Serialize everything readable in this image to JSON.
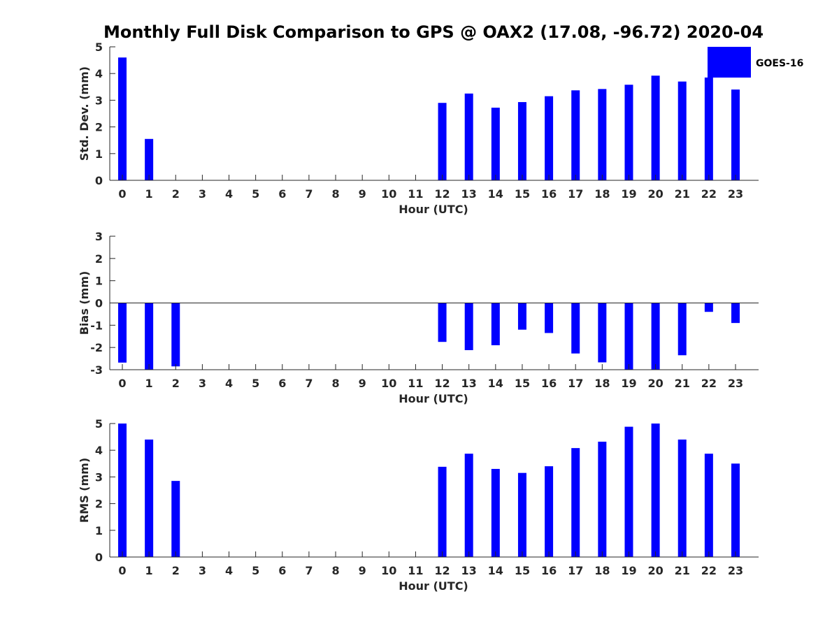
{
  "title": "Monthly Full Disk Comparison to GPS @ OAX2 (17.08, -96.72) 2020-04",
  "legend": {
    "label": "GOES-16",
    "color": "#0000ff",
    "placement": "top-right"
  },
  "chart_data": [
    {
      "type": "bar",
      "xlabel": "Hour (UTC)",
      "ylabel": "Std. Dev. (mm)",
      "ylim": [
        0,
        5
      ],
      "yticks": [
        0,
        1,
        2,
        3,
        4,
        5
      ],
      "categories": [
        "0",
        "1",
        "2",
        "3",
        "4",
        "5",
        "6",
        "7",
        "8",
        "9",
        "10",
        "11",
        "12",
        "13",
        "14",
        "15",
        "16",
        "17",
        "18",
        "19",
        "20",
        "21",
        "22",
        "23"
      ],
      "values": [
        4.6,
        1.55,
        null,
        null,
        null,
        null,
        null,
        null,
        null,
        null,
        null,
        null,
        2.9,
        3.25,
        2.72,
        2.93,
        3.15,
        3.37,
        3.42,
        3.58,
        3.92,
        3.7,
        3.85,
        3.4
      ],
      "color": "#0000ff"
    },
    {
      "type": "bar",
      "xlabel": "Hour (UTC)",
      "ylabel": "Bias (mm)",
      "ylim": [
        -3,
        3
      ],
      "yticks": [
        -3,
        -2,
        -1,
        0,
        1,
        2,
        3
      ],
      "categories": [
        "0",
        "1",
        "2",
        "3",
        "4",
        "5",
        "6",
        "7",
        "8",
        "9",
        "10",
        "11",
        "12",
        "13",
        "14",
        "15",
        "16",
        "17",
        "18",
        "19",
        "20",
        "21",
        "22",
        "23"
      ],
      "values": [
        -2.68,
        -3.0,
        -2.85,
        null,
        null,
        null,
        null,
        null,
        null,
        null,
        null,
        null,
        -1.75,
        -2.12,
        -1.9,
        -1.2,
        -1.35,
        -2.27,
        -2.67,
        -3.0,
        -3.0,
        -2.35,
        -0.4,
        -0.9
      ],
      "color": "#0000ff"
    },
    {
      "type": "bar",
      "xlabel": "Hour (UTC)",
      "ylabel": "RMS (mm)",
      "ylim": [
        0,
        5
      ],
      "yticks": [
        0,
        1,
        2,
        3,
        4,
        5
      ],
      "categories": [
        "0",
        "1",
        "2",
        "3",
        "4",
        "5",
        "6",
        "7",
        "8",
        "9",
        "10",
        "11",
        "12",
        "13",
        "14",
        "15",
        "16",
        "17",
        "18",
        "19",
        "20",
        "21",
        "22",
        "23"
      ],
      "values": [
        5.0,
        4.4,
        2.85,
        null,
        null,
        null,
        null,
        null,
        null,
        null,
        null,
        null,
        3.38,
        3.87,
        3.3,
        3.15,
        3.4,
        4.08,
        4.32,
        4.88,
        5.0,
        4.4,
        3.87,
        3.5
      ],
      "color": "#0000ff"
    }
  ]
}
